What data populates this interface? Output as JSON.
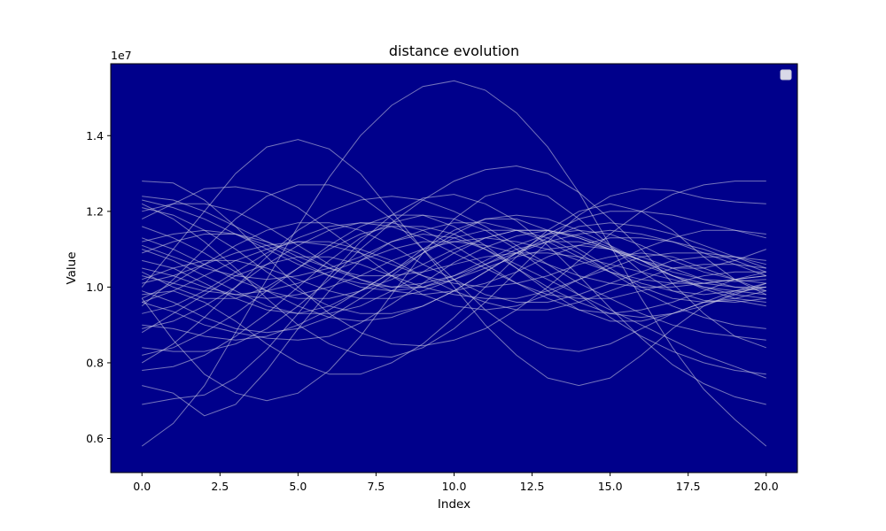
{
  "chart_data": {
    "type": "line",
    "title": "distance evolution",
    "xlabel": "Index",
    "ylabel": "Value",
    "y_offset_label": "1e7",
    "xlim": [
      -1.0,
      21.0
    ],
    "ylim": [
      5100000,
      15900000
    ],
    "xticks": [
      0.0,
      2.5,
      5.0,
      7.5,
      10.0,
      12.5,
      15.0,
      17.5,
      20.0
    ],
    "xtick_labels": [
      "0.0",
      "2.5",
      "5.0",
      "7.5",
      "10.0",
      "12.5",
      "15.0",
      "17.5",
      "20.0"
    ],
    "yticks": [
      6000000,
      8000000,
      10000000,
      12000000,
      14000000
    ],
    "ytick_labels": [
      "0.6",
      "0.8",
      "1.0",
      "1.2",
      "1.4"
    ],
    "grid": false,
    "legend": "top-right (empty)",
    "colors": {
      "plot_background": "#00008b",
      "line": "#d3d3e6",
      "legend_box": "#d9d9e8"
    },
    "x": [
      0,
      1,
      2,
      3,
      4,
      5,
      6,
      7,
      8,
      9,
      10,
      11,
      12,
      13,
      14,
      15,
      16,
      17,
      18,
      19,
      20
    ],
    "series": [
      {
        "values": [
          9600000,
          9350000,
          9000000,
          8800000,
          8650000,
          8600000,
          8700000,
          9050000,
          9550000,
          10100000,
          10650000,
          11050000,
          11350000,
          11500000,
          11350000,
          11050000,
          10700000,
          10300000,
          9950000,
          9700000,
          9600000
        ]
      },
      {
        "values": [
          6900000,
          7050000,
          7150000,
          7600000,
          8350000,
          9300000,
          10300000,
          11200000,
          11900000,
          12350000,
          12450000,
          12200000,
          11750000,
          11100000,
          10300000,
          9450000,
          8650000,
          7950000,
          7450000,
          7100000,
          6900000
        ]
      },
      {
        "values": [
          10000000,
          11000000,
          12000000,
          13000000,
          13700000,
          13900000,
          13650000,
          13000000,
          12000000,
          11000000,
          10000000,
          9000000,
          8200000,
          7600000,
          7400000,
          7600000,
          8200000,
          8900000,
          9500000,
          9850000,
          10000000
        ]
      },
      {
        "values": [
          9700000,
          8600000,
          7700000,
          7200000,
          7000000,
          7200000,
          7800000,
          8700000,
          9800000,
          10900000,
          11800000,
          12400000,
          12600000,
          12400000,
          11800000,
          11100000,
          10400000,
          9900000,
          9650000,
          9600000,
          9700000
        ]
      },
      {
        "values": [
          5800000,
          6400000,
          7400000,
          8800000,
          10200000,
          11600000,
          12900000,
          14000000,
          14800000,
          15300000,
          15450000,
          15200000,
          14600000,
          13700000,
          12500000,
          11100000,
          9700000,
          8400000,
          7300000,
          6500000,
          5800000
        ]
      },
      {
        "values": [
          9800000,
          9900000,
          9600000,
          9100000,
          8500000,
          8000000,
          7700000,
          7700000,
          8000000,
          8500000,
          9200000,
          10000000,
          10800000,
          11500000,
          12000000,
          12200000,
          12000000,
          11500000,
          10800000,
          10200000,
          9800000
        ]
      },
      {
        "values": [
          8400000,
          8300000,
          8300000,
          8500000,
          8900000,
          9500000,
          10200000,
          11000000,
          11700000,
          12300000,
          12800000,
          13100000,
          13200000,
          13000000,
          12500000,
          11800000,
          11000000,
          10100000,
          9300000,
          8700000,
          8400000
        ]
      },
      {
        "values": [
          12800000,
          12750000,
          12300000,
          11600000,
          10800000,
          10000000,
          9300000,
          8800000,
          8500000,
          8450000,
          8600000,
          8900000,
          9400000,
          10000000,
          10700000,
          11400000,
          12000000,
          12450000,
          12700000,
          12800000,
          12800000
        ]
      },
      {
        "values": [
          11000000,
          10700000,
          10300000,
          9900000,
          9500000,
          9300000,
          9300000,
          9500000,
          9900000,
          10400000,
          10900000,
          11300000,
          11500000,
          11500000,
          11300000,
          11000000,
          10700000,
          10500000,
          10500000,
          10700000,
          11000000
        ]
      },
      {
        "values": [
          10200000,
          10500000,
          10700000,
          10700000,
          10500000,
          10200000,
          9900000,
          9700000,
          9700000,
          9900000,
          10200000,
          10600000,
          11000000,
          11200000,
          11200000,
          11000000,
          10700000,
          10400000,
          10200000,
          10150000,
          10200000
        ]
      },
      {
        "values": [
          12200000,
          11800000,
          11200000,
          10500000,
          9700000,
          9000000,
          8500000,
          8200000,
          8150000,
          8400000,
          8900000,
          9600000,
          10400000,
          11200000,
          11900000,
          12400000,
          12600000,
          12550000,
          12350000,
          12250000,
          12200000
        ]
      },
      {
        "values": [
          9500000,
          10200000,
          11000000,
          11800000,
          12400000,
          12700000,
          12700000,
          12400000,
          11800000,
          11000000,
          10200000,
          9400000,
          8800000,
          8400000,
          8300000,
          8500000,
          8900000,
          9300000,
          9600000,
          9650000,
          9500000
        ]
      },
      {
        "values": [
          11200000,
          11400000,
          11500000,
          11400000,
          11100000,
          10700000,
          10300000,
          10000000,
          9900000,
          10000000,
          10300000,
          10700000,
          11100000,
          11400000,
          11500000,
          11400000,
          11100000,
          10700000,
          10400000,
          10200000,
          10100000
        ]
      },
      {
        "values": [
          7400000,
          7200000,
          6600000,
          6900000,
          7800000,
          8900000,
          9900000,
          10700000,
          11200000,
          11400000,
          11300000,
          11000000,
          10600000,
          10200000,
          9800000,
          9400000,
          9000000,
          8600000,
          8200000,
          7900000,
          7600000
        ]
      },
      {
        "values": [
          10700000,
          10500000,
          10100000,
          9700000,
          9400000,
          9300000,
          9500000,
          9900000,
          10400000,
          11000000,
          11500000,
          11800000,
          11800000,
          11500000,
          11000000,
          10500000,
          10000000,
          9700000,
          9600000,
          9700000,
          9900000
        ]
      },
      {
        "values": [
          12400000,
          12300000,
          12000000,
          11600000,
          11200000,
          10800000,
          10500000,
          10300000,
          10300000,
          10400000,
          10600000,
          10800000,
          10900000,
          10900000,
          10800000,
          10600000,
          10400000,
          10200000,
          10000000,
          9900000,
          9800000
        ]
      },
      {
        "values": [
          8000000,
          8500000,
          9200000,
          10000000,
          10800000,
          11500000,
          12000000,
          12300000,
          12400000,
          12300000,
          12000000,
          11600000,
          11100000,
          10600000,
          10100000,
          9700000,
          9300000,
          9000000,
          8800000,
          8700000,
          8600000
        ]
      },
      {
        "values": [
          11800000,
          12200000,
          12600000,
          12650000,
          12500000,
          12100000,
          11500000,
          10900000,
          10300000,
          9800000,
          9500000,
          9400000,
          9500000,
          9800000,
          10200000,
          10600000,
          11000000,
          11300000,
          11500000,
          11500000,
          11400000
        ]
      },
      {
        "values": [
          9000000,
          8900000,
          8700000,
          8600000,
          8700000,
          9000000,
          9400000,
          9900000,
          10400000,
          10900000,
          11300000,
          11500000,
          11500000,
          11300000,
          10900000,
          10400000,
          9900000,
          9500000,
          9200000,
          9000000,
          8900000
        ]
      },
      {
        "values": [
          10400000,
          10000000,
          9700000,
          9700000,
          10000000,
          10500000,
          11100000,
          11600000,
          11900000,
          11900000,
          11600000,
          11100000,
          10500000,
          9900000,
          9400000,
          9100000,
          9100000,
          9300000,
          9600000,
          9900000,
          10100000
        ]
      },
      {
        "values": [
          12100000,
          11900000,
          11500000,
          11000000,
          10400000,
          9900000,
          9500000,
          9300000,
          9300000,
          9500000,
          9900000,
          10400000,
          10900000,
          11400000,
          11800000,
          12000000,
          12000000,
          11900000,
          11700000,
          11500000,
          11300000
        ]
      },
      {
        "values": [
          9600000,
          9900000,
          10300000,
          10700000,
          11000000,
          11200000,
          11200000,
          11000000,
          10700000,
          10300000,
          9900000,
          9600000,
          9400000,
          9400000,
          9600000,
          9900000,
          10200000,
          10500000,
          10600000,
          10600000,
          10500000
        ]
      },
      {
        "values": [
          11100000,
          10800000,
          10500000,
          10300000,
          10200000,
          10300000,
          10500000,
          10800000,
          11200000,
          11500000,
          11700000,
          11700000,
          11500000,
          11200000,
          10800000,
          10400000,
          10100000,
          9900000,
          9800000,
          9900000,
          10000000
        ]
      },
      {
        "values": [
          8800000,
          9300000,
          9800000,
          10300000,
          10600000,
          10800000,
          10800000,
          10600000,
          10300000,
          10000000,
          9800000,
          9700000,
          9700000,
          9900000,
          10200000,
          10500000,
          10800000,
          10900000,
          10900000,
          10800000,
          10600000
        ]
      },
      {
        "values": [
          10100000,
          10300000,
          10600000,
          10900000,
          11100000,
          11200000,
          11100000,
          10900000,
          10600000,
          10300000,
          10100000,
          10000000,
          10100000,
          10300000,
          10600000,
          10800000,
          10900000,
          10800000,
          10500000,
          10200000,
          9900000
        ]
      },
      {
        "values": [
          9900000,
          9600000,
          9200000,
          8900000,
          8800000,
          8900000,
          9200000,
          9700000,
          10300000,
          10900000,
          11400000,
          11800000,
          11900000,
          11800000,
          11500000,
          11100000,
          10700000,
          10300000,
          10000000,
          9800000,
          9700000
        ]
      },
      {
        "values": [
          12300000,
          12100000,
          11800000,
          11400000,
          11000000,
          10600000,
          10300000,
          10100000,
          10000000,
          10100000,
          10300000,
          10600000,
          10900000,
          11200000,
          11400000,
          11500000,
          11400000,
          11200000,
          10900000,
          10600000,
          10300000
        ]
      },
      {
        "values": [
          8200000,
          8400000,
          8800000,
          9300000,
          9900000,
          10500000,
          11000000,
          11400000,
          11600000,
          11600000,
          11400000,
          11000000,
          10500000,
          10000000,
          9600000,
          9300000,
          9200000,
          9300000,
          9500000,
          9800000,
          10100000
        ]
      },
      {
        "values": [
          10900000,
          11200000,
          11400000,
          11400000,
          11200000,
          10900000,
          10500000,
          10200000,
          10000000,
          10000000,
          10200000,
          10500000,
          10800000,
          11000000,
          11100000,
          11000000,
          10800000,
          10500000,
          10200000,
          10000000,
          9900000
        ]
      },
      {
        "values": [
          7800000,
          7900000,
          8200000,
          8700000,
          9300000,
          10000000,
          10700000,
          11300000,
          11700000,
          11900000,
          11800000,
          11500000,
          11000000,
          10400000,
          9800000,
          9200000,
          8700000,
          8300000,
          8000000,
          7800000,
          7700000
        ]
      },
      {
        "values": [
          11600000,
          11300000,
          10900000,
          10400000,
          9900000,
          9500000,
          9200000,
          9100000,
          9200000,
          9500000,
          9900000,
          10400000,
          10900000,
          11300000,
          11600000,
          11700000,
          11600000,
          11400000,
          11100000,
          10800000,
          10500000
        ]
      },
      {
        "values": [
          9300000,
          9500000,
          9900000,
          10400000,
          10900000,
          11300000,
          11600000,
          11700000,
          11600000,
          11300000,
          10900000,
          10500000,
          10100000,
          9800000,
          9700000,
          9700000,
          9900000,
          10100000,
          10300000,
          10400000,
          10400000
        ]
      },
      {
        "values": [
          12000000,
          12200000,
          12200000,
          12000000,
          11600000,
          11100000,
          10600000,
          10200000,
          9900000,
          9800000,
          9900000,
          10100000,
          10400000,
          10800000,
          11100000,
          11300000,
          11300000,
          11200000,
          11000000,
          10700000,
          10400000
        ]
      },
      {
        "values": [
          10500000,
          10300000,
          10000000,
          9800000,
          9700000,
          9800000,
          10000000,
          10300000,
          10700000,
          11000000,
          11200000,
          11300000,
          11200000,
          11000000,
          10700000,
          10400000,
          10200000,
          10100000,
          10100000,
          10200000,
          10300000
        ]
      },
      {
        "values": [
          8900000,
          9100000,
          9500000,
          10000000,
          10600000,
          11100000,
          11500000,
          11700000,
          11700000,
          11500000,
          11100000,
          10600000,
          10100000,
          9700000,
          9400000,
          9300000,
          9400000,
          9600000,
          9900000,
          10200000,
          10400000
        ]
      },
      {
        "values": [
          11300000,
          11000000,
          10600000,
          10200000,
          9900000,
          9700000,
          9700000,
          9900000,
          10200000,
          10600000,
          11000000,
          11300000,
          11500000,
          11500000,
          11300000,
          11000000,
          10600000,
          10300000,
          10100000,
          10000000,
          10000000
        ]
      },
      {
        "values": [
          9700000,
          10100000,
          10600000,
          11100000,
          11500000,
          11700000,
          11700000,
          11500000,
          11100000,
          10600000,
          10200000,
          9800000,
          9600000,
          9600000,
          9800000,
          10100000,
          10400000,
          10700000,
          10800000,
          10800000,
          10700000
        ]
      },
      {
        "values": [
          10300000,
          10100000,
          9900000,
          9800000,
          9900000,
          10100000,
          10400000,
          10700000,
          11000000,
          11200000,
          11200000,
          11100000,
          10900000,
          10600000,
          10300000,
          10100000,
          10000000,
          10000000,
          10100000,
          10200000,
          10300000
        ]
      }
    ]
  }
}
